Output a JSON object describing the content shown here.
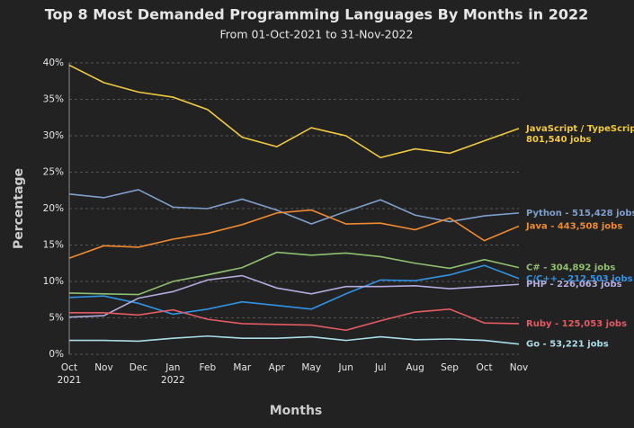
{
  "chart_data": {
    "type": "line",
    "title": "Top 8 Most Demanded Programming Languages By Months in 2022",
    "subtitle": "From 01-Oct-2021 to 31-Nov-2022",
    "x_label": "Months",
    "y_label": "Percentage",
    "categories": [
      "Oct 2021",
      "Nov",
      "Dec",
      "Jan 2022",
      "Feb",
      "Mar",
      "Apr",
      "May",
      "Jun",
      "Jul",
      "Aug",
      "Sep",
      "Oct",
      "Nov"
    ],
    "ylim": [
      0,
      40
    ],
    "yticks": [
      {
        "value": 0,
        "label": "0%"
      },
      {
        "value": 5,
        "label": "5%"
      },
      {
        "value": 10,
        "label": "10%"
      },
      {
        "value": 15,
        "label": "15%"
      },
      {
        "value": 20,
        "label": "20%"
      },
      {
        "value": 25,
        "label": "25%"
      },
      {
        "value": 30,
        "label": "30%"
      },
      {
        "value": 35,
        "label": "35%"
      },
      {
        "value": 40,
        "label": "40%"
      }
    ],
    "grid": true,
    "series": [
      {
        "name": "JavaScript / TypeScript",
        "jobs_label": "801,540 jobs",
        "color": "#f0c840",
        "values": [
          39.7,
          37.3,
          36.0,
          35.3,
          33.6,
          29.8,
          28.5,
          31.1,
          30.0,
          27.0,
          28.2,
          27.6,
          29.3,
          31.0
        ]
      },
      {
        "name": "Python - 515,428 jobs",
        "color": "#7f9fcc",
        "values": [
          22.0,
          21.5,
          22.6,
          20.2,
          20.0,
          21.3,
          19.8,
          17.9,
          19.6,
          21.2,
          19.1,
          18.2,
          19.0,
          19.4
        ]
      },
      {
        "name": "Java - 443,508 jobs",
        "color": "#f08a30",
        "values": [
          13.2,
          14.9,
          14.7,
          15.8,
          16.6,
          17.8,
          19.4,
          19.8,
          17.9,
          18.0,
          17.1,
          18.7,
          15.6,
          17.6
        ]
      },
      {
        "name": "C# - 304,892 jobs",
        "color": "#8fc070",
        "values": [
          8.4,
          8.3,
          8.2,
          10.0,
          10.9,
          11.9,
          14.0,
          13.6,
          13.9,
          13.4,
          12.5,
          11.8,
          13.0,
          11.9
        ]
      },
      {
        "name": "C/C++ - 212,503 jobs",
        "color": "#3093e6",
        "values": [
          7.8,
          8.0,
          7.0,
          5.5,
          6.2,
          7.2,
          6.7,
          6.2,
          8.3,
          10.2,
          10.1,
          10.9,
          12.2,
          10.4
        ]
      },
      {
        "name": "PHP - 226,063 jobs",
        "color": "#b3abdc",
        "values": [
          5.1,
          5.3,
          7.7,
          8.6,
          10.2,
          10.8,
          9.1,
          8.3,
          9.3,
          9.3,
          9.4,
          9.0,
          9.3,
          9.6
        ]
      },
      {
        "name": "Ruby - 125,053 jobs",
        "color": "#e35b63",
        "values": [
          5.7,
          5.7,
          5.4,
          6.1,
          4.8,
          4.2,
          4.1,
          4.0,
          3.3,
          4.6,
          5.8,
          6.2,
          4.3,
          4.2
        ]
      },
      {
        "name": "Go - 53,221 jobs",
        "color": "#a9dce9",
        "values": [
          1.9,
          1.9,
          1.8,
          2.2,
          2.5,
          2.2,
          2.2,
          2.4,
          1.9,
          2.4,
          2.0,
          2.1,
          1.9,
          1.4
        ]
      }
    ]
  }
}
